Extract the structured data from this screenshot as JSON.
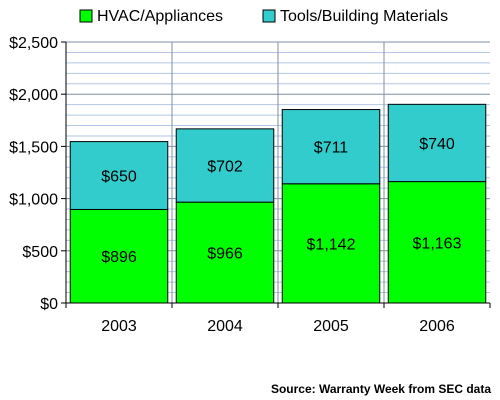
{
  "chart_data": {
    "type": "bar",
    "stacked": true,
    "categories": [
      "2003",
      "2004",
      "2005",
      "2006"
    ],
    "series": [
      {
        "name": "HVAC/Appliances",
        "values": [
          896,
          966,
          1142,
          1163
        ],
        "labels": [
          "$896",
          "$966",
          "$1,142",
          "$1,163"
        ],
        "color": "#00ff00"
      },
      {
        "name": "Tools/Building Materials",
        "values": [
          650,
          702,
          711,
          740
        ],
        "labels": [
          "$650",
          "$702",
          "$711",
          "$740"
        ],
        "color": "#33cccc"
      }
    ],
    "ylim": [
      0,
      2500
    ],
    "yticks": [
      0,
      500,
      1000,
      1500,
      2000,
      2500
    ],
    "ytick_labels": [
      "$0",
      "$500",
      "$1,000",
      "$1,500",
      "$2,000",
      "$2,500"
    ],
    "minor_grid_step": 100,
    "grid": true,
    "legend_position": "top",
    "source": "Source: Warranty Week from SEC data"
  }
}
